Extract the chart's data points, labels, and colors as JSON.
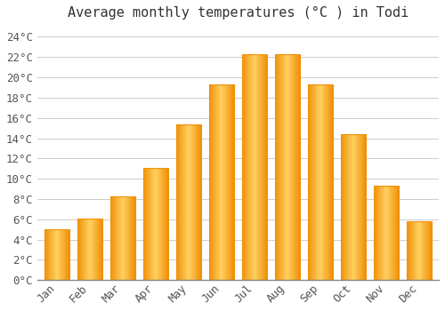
{
  "title": "Average monthly temperatures (°C ) in Todi",
  "months": [
    "Jan",
    "Feb",
    "Mar",
    "Apr",
    "May",
    "Jun",
    "Jul",
    "Aug",
    "Sep",
    "Oct",
    "Nov",
    "Dec"
  ],
  "temperatures": [
    5.0,
    6.1,
    8.3,
    11.1,
    15.4,
    19.3,
    22.3,
    22.3,
    19.3,
    14.4,
    9.3,
    5.8
  ],
  "bar_color_center": "#FFD060",
  "bar_color_edge": "#F0920A",
  "background_color": "#FFFFFF",
  "grid_color": "#CCCCCC",
  "ylim": [
    0,
    25
  ],
  "yticks": [
    0,
    2,
    4,
    6,
    8,
    10,
    12,
    14,
    16,
    18,
    20,
    22,
    24
  ],
  "title_fontsize": 11,
  "tick_fontsize": 9,
  "bar_width": 0.75
}
